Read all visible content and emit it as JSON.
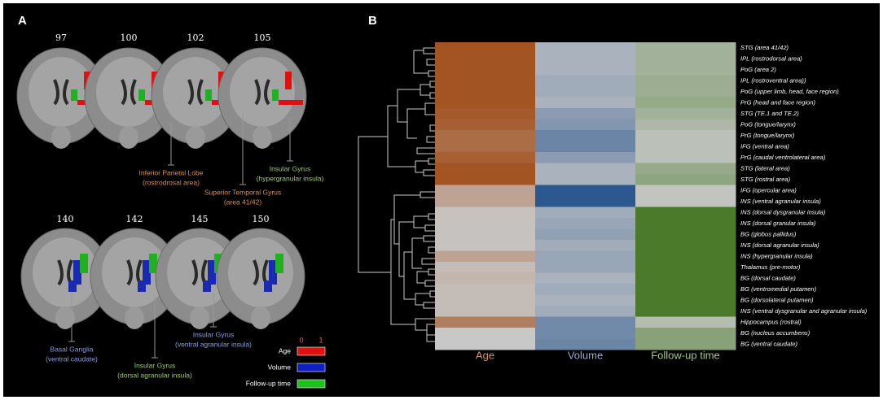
{
  "panel_a": {
    "label": "A",
    "top_slices": [
      97,
      100,
      102,
      105
    ],
    "bottom_slices": [
      140,
      142,
      145,
      150
    ],
    "annotations": [
      {
        "title": "Inferior Parietal Lobe",
        "subtitle": "(rostrodrosal area)",
        "color": "#d9915a"
      },
      {
        "title": "Superior Temporal Gyrus",
        "subtitle": "(area 41/42)",
        "color": "#d9915a"
      },
      {
        "title": "Insular  Gyrus",
        "subtitle": "(hypergranular insula)",
        "color": "#9ccc7a"
      },
      {
        "title": "Basal Ganglia",
        "subtitle": "(ventral caudate)",
        "color": "#8f9fe0"
      },
      {
        "title": "Insular  Gyrus",
        "subtitle": "(dorsal agranular insula)",
        "color": "#9ccc7a"
      },
      {
        "title": "Insular Gyrus",
        "subtitle": "(ventral agranular insula)",
        "color": "#8f9fe0"
      }
    ],
    "legend": {
      "ticks": [
        0,
        1
      ],
      "items": [
        {
          "name": "Age",
          "color": "#e01010"
        },
        {
          "name": "Volume",
          "color": "#1020c0"
        },
        {
          "name": "Follow-up time",
          "color": "#20c020"
        }
      ]
    }
  },
  "chart_data": {
    "type": "heatmap",
    "panel_label": "B",
    "rows": [
      "STG (area 41/42)",
      "IPL (rostrodorsal area)",
      "PoG (area 2)",
      "IPL (rostroventral area))",
      "PoG (upper limb, head, face region)",
      "PrG (head and face region)",
      "STG (TE.1 and TE.2)",
      "PoG (tongue/larynx)",
      "PrG (tongue/larynx)",
      "IFG (ventral area)",
      "PrG (caudal ventrolateral area)",
      "STG (lateral area)",
      "STG (rostral area)",
      "IFG (opercular area)",
      "INS (ventral agranular insula)",
      "INS (dorsal dysgranular insula)",
      "INS (dorsal granular insula)",
      "BG (globus pallidus)",
      "INS (dorsal agranular insula)",
      "INS (hypergranular insula)",
      "Thalamus (pre-motor)",
      "BG (dorsal caudate)",
      "BG (ventromedial putamen)",
      "BG (dorsolateral putamen)",
      "INS (ventral dysgranular and agranular insula)",
      "Hippocampus (rostral)",
      "BG (nucleus accumbens)",
      "BG (ventral caudate)"
    ],
    "series": [
      {
        "name": "Age",
        "color": "#a04e1a",
        "label_color": "#d9915a",
        "values": [
          0.95,
          0.95,
          0.95,
          0.95,
          0.95,
          0.95,
          0.9,
          0.85,
          0.75,
          0.75,
          0.85,
          0.95,
          0.95,
          0.3,
          0.3,
          0.05,
          0.05,
          0.05,
          0.05,
          0.3,
          0.1,
          0.15,
          0.1,
          0.1,
          0.1,
          0.6,
          0.0,
          0.0
        ]
      },
      {
        "name": "Volume",
        "color": "#2c5890",
        "label_color": "#9aa8cc",
        "values": [
          0.2,
          0.2,
          0.2,
          0.25,
          0.25,
          0.2,
          0.4,
          0.45,
          0.6,
          0.6,
          0.4,
          0.2,
          0.2,
          1.0,
          1.0,
          0.25,
          0.3,
          0.35,
          0.25,
          0.3,
          0.3,
          0.2,
          0.25,
          0.2,
          0.25,
          0.55,
          0.55,
          0.6
        ]
      },
      {
        "name": "Follow-up time",
        "color": "#4a7a2a",
        "label_color": "#a8c48a",
        "values": [
          0.3,
          0.3,
          0.3,
          0.35,
          0.35,
          0.4,
          0.3,
          0.2,
          0.1,
          0.1,
          0.1,
          0.4,
          0.45,
          0.05,
          0.05,
          1.0,
          1.0,
          1.0,
          1.0,
          1.0,
          1.0,
          1.0,
          1.0,
          1.0,
          1.0,
          0.15,
          0.5,
          0.5
        ]
      }
    ]
  }
}
